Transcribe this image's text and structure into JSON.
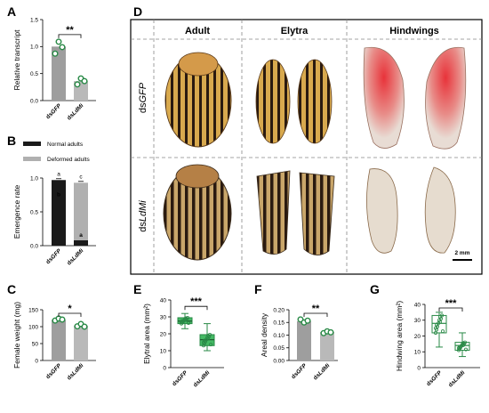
{
  "panels": {
    "A": "A",
    "B": "B",
    "C": "C",
    "D": "D",
    "E": "E",
    "F": "F",
    "G": "G"
  },
  "colors": {
    "gfp": "#9e9e9e",
    "ldmi": "#b9b9b9",
    "normal": "#1a1a1a",
    "deformed": "#b0b0b0",
    "green": "#2a8a47",
    "greenFill": "#44b964"
  },
  "chart_data": [
    {
      "id": "A",
      "type": "bar",
      "ylabel": "Relative transcript",
      "categories": [
        "dsGFP",
        "dsLdMi"
      ],
      "values": [
        1.0,
        0.36
      ],
      "points": [
        [
          0.87,
          1.09,
          0.99
        ],
        [
          0.3,
          0.41,
          0.36
        ]
      ],
      "ylim": [
        0,
        1.5
      ],
      "yticks": [
        "0.0",
        "0.5",
        "1.0",
        "1.5"
      ],
      "significance": "**"
    },
    {
      "id": "B",
      "type": "bar",
      "ylabel": "Emergence rate",
      "categories": [
        "dsGFP",
        "dsLdMi"
      ],
      "legend": [
        "Normal adults",
        "Deformed adults"
      ],
      "series": [
        {
          "name": "Normal adults",
          "values": [
            0.97,
            0.08
          ]
        },
        {
          "name": "Deformed adults",
          "values": [
            0.0,
            0.85
          ]
        }
      ],
      "ylim": [
        0,
        1.0
      ],
      "yticks": [
        "0.0",
        "0.5",
        "1.0"
      ],
      "letters": {
        "top": [
          "a",
          "c"
        ],
        "inner": [
          "b",
          "a"
        ]
      }
    },
    {
      "id": "C",
      "type": "bar",
      "ylabel": "Female weight (mg)",
      "categories": [
        "dsGFP",
        "dsLdMi"
      ],
      "values": [
        120,
        103
      ],
      "points": [
        [
          118,
          124,
          121
        ],
        [
          101,
          108,
          100
        ]
      ],
      "ylim": [
        0,
        150
      ],
      "yticks": [
        "0",
        "50",
        "100",
        "150"
      ],
      "significance": "*"
    },
    {
      "id": "E",
      "type": "box",
      "ylabel": "Elytral area (mm²)",
      "categories": [
        "dsGFP",
        "dsLdMi"
      ],
      "boxes": [
        {
          "min": 23,
          "q1": 26,
          "median": 27.5,
          "q3": 29.5,
          "max": 32
        },
        {
          "min": 10,
          "q1": 13,
          "median": 16.5,
          "q3": 19.5,
          "max": 26
        }
      ],
      "ylim": [
        0,
        40
      ],
      "yticks": [
        "0",
        "10",
        "20",
        "30",
        "40"
      ],
      "significance": "***"
    },
    {
      "id": "F",
      "type": "bar",
      "ylabel": "Areal density",
      "categories": [
        "dsGFP",
        "dsLdMi"
      ],
      "values": [
        0.155,
        0.112
      ],
      "points": [
        [
          0.162,
          0.15,
          0.157
        ],
        [
          0.108,
          0.115,
          0.111
        ]
      ],
      "ylim": [
        0,
        0.2
      ],
      "yticks": [
        "0.00",
        "0.05",
        "0.10",
        "0.15",
        "0.20"
      ],
      "significance": "**"
    },
    {
      "id": "G",
      "type": "box",
      "ylabel": "Hindwing area (mm²)",
      "categories": [
        "dsGFP",
        "dsLdMi"
      ],
      "boxes": [
        {
          "min": 13,
          "q1": 22,
          "median": 28,
          "q3": 33,
          "max": 35
        },
        {
          "min": 7,
          "q1": 11,
          "median": 14,
          "q3": 16,
          "max": 22
        }
      ],
      "ylim": [
        0,
        40
      ],
      "yticks": [
        "0",
        "10",
        "20",
        "30",
        "40"
      ],
      "significance": "***"
    }
  ],
  "photo_grid": {
    "columns": [
      "Adult",
      "Elytra",
      "Hindwings"
    ],
    "rows": [
      {
        "prefix": "ds",
        "gene": "GFP"
      },
      {
        "prefix": "ds",
        "gene": "LdMi"
      }
    ],
    "scale_bar": "2 mm"
  }
}
